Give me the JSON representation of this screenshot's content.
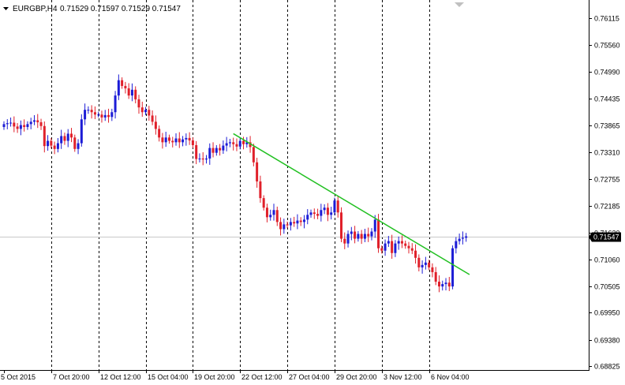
{
  "header": {
    "symbol": "EURGBP,H4",
    "ohlc": "0.71529 0.71597 0.71529 0.71547"
  },
  "colors": {
    "bull": "#1c1cd6",
    "bear": "#e0202a",
    "trendline": "#22c022",
    "grid": "#000000",
    "price_line": "#c8c8c8",
    "badge_bg": "#000000",
    "background": "#ffffff"
  },
  "chart_data": {
    "type": "candlestick",
    "symbol": "EURGBP",
    "timeframe": "H4",
    "ylim": [
      0.6875,
      0.765
    ],
    "y_ticks": [
      "0.76115",
      "0.75560",
      "0.74990",
      "0.74435",
      "0.73865",
      "0.73310",
      "0.72755",
      "0.72185",
      "0.71630",
      "0.71060",
      "0.70505",
      "0.69950",
      "0.69380",
      "0.68825"
    ],
    "x_ticks": [
      {
        "label": "5 Oct 2015",
        "bar": 0
      },
      {
        "label": "7 Oct 20:00",
        "bar": 14
      },
      {
        "label": "12 Oct 12:00",
        "bar": 28
      },
      {
        "label": "15 Oct 04:00",
        "bar": 42
      },
      {
        "label": "19 Oct 20:00",
        "bar": 56
      },
      {
        "label": "22 Oct 12:00",
        "bar": 70
      },
      {
        "label": "27 Oct 04:00",
        "bar": 84
      },
      {
        "label": "29 Oct 20:00",
        "bar": 98
      },
      {
        "label": "3 Nov 12:00",
        "bar": 112
      },
      {
        "label": "6 Nov 04:00",
        "bar": 126
      }
    ],
    "current_price": "0.71547",
    "close": [
      0.739,
      0.7392,
      0.7393,
      0.7385,
      0.738,
      0.7388,
      0.7384,
      0.739,
      0.7395,
      0.7398,
      0.7394,
      0.7386,
      0.7344,
      0.7355,
      0.7345,
      0.7338,
      0.735,
      0.7365,
      0.7355,
      0.737,
      0.7362,
      0.7338,
      0.735,
      0.74,
      0.742,
      0.742,
      0.7415,
      0.741,
      0.741,
      0.7404,
      0.7409,
      0.7405,
      0.7415,
      0.745,
      0.7482,
      0.747,
      0.7465,
      0.745,
      0.7462,
      0.7442,
      0.7425,
      0.7415,
      0.742,
      0.7408,
      0.7395,
      0.738,
      0.7362,
      0.7352,
      0.7362,
      0.7355,
      0.7352,
      0.736,
      0.7352,
      0.7358,
      0.7361,
      0.7356,
      0.7346,
      0.7317,
      0.7318,
      0.7316,
      0.7318,
      0.734,
      0.733,
      0.734,
      0.7335,
      0.7345,
      0.735,
      0.7352,
      0.7348,
      0.7343,
      0.7355,
      0.7348,
      0.7352,
      0.7342,
      0.731,
      0.727,
      0.7235,
      0.7215,
      0.7195,
      0.72,
      0.721,
      0.7185,
      0.717,
      0.718,
      0.7178,
      0.7185,
      0.7182,
      0.7188,
      0.7185,
      0.719,
      0.72,
      0.7205,
      0.7202,
      0.7198,
      0.721,
      0.7215,
      0.72,
      0.7205,
      0.723,
      0.7205,
      0.715,
      0.714,
      0.716,
      0.7165,
      0.715,
      0.716,
      0.715,
      0.716,
      0.7155,
      0.7165,
      0.719,
      0.713,
      0.7125,
      0.714,
      0.7145,
      0.712,
      0.714,
      0.7145,
      0.714,
      0.7135,
      0.713,
      0.7125,
      0.711,
      0.709,
      0.7095,
      0.71,
      0.709,
      0.708,
      0.706,
      0.705,
      0.7055,
      0.7058,
      0.705,
      0.713,
      0.7145,
      0.715,
      0.7152,
      0.7155
    ]
  }
}
